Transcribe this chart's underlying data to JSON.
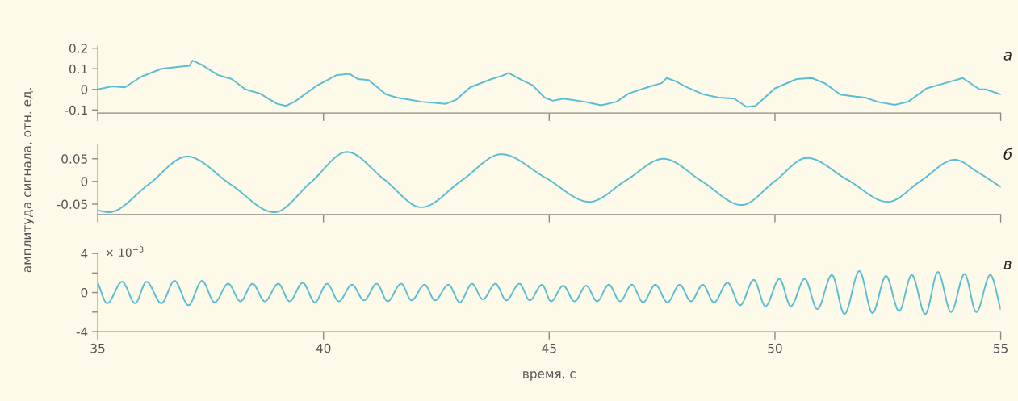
{
  "chart_data": [
    {
      "type": "line",
      "title": "а",
      "ylim": [
        -0.115,
        0.21
      ],
      "yticks": [
        0.2,
        0.1,
        0,
        {
          "value": -0.1,
          "label": "-0.1"
        }
      ],
      "xlim": [
        35,
        55
      ],
      "xticks": [
        35,
        40,
        45,
        50,
        55
      ],
      "tick_labels": "y",
      "grid": false,
      "series": [
        {
          "color": "#5bbcd3",
          "x": [
            35.0,
            35.32,
            35.6,
            35.95,
            36.41,
            36.8,
            37.03,
            37.1,
            37.3,
            37.66,
            37.97,
            38.27,
            38.59,
            38.97,
            39.17,
            39.36,
            39.83,
            40.3,
            40.58,
            40.76,
            41.0,
            41.39,
            41.63,
            42.17,
            42.71,
            42.94,
            43.25,
            43.72,
            43.95,
            44.1,
            44.4,
            44.63,
            44.9,
            45.08,
            45.31,
            45.79,
            46.15,
            46.49,
            46.76,
            47.24,
            47.49,
            47.6,
            47.8,
            48.0,
            48.42,
            48.76,
            49.1,
            49.37,
            49.57,
            50.0,
            50.48,
            50.82,
            51.1,
            51.45,
            51.79,
            52.0,
            52.27,
            52.65,
            52.95,
            53.36,
            53.84,
            54.16,
            54.53,
            54.67,
            55.0
          ],
          "values": [
            0.0,
            0.015,
            0.01,
            0.06,
            0.1,
            0.11,
            0.115,
            0.14,
            0.12,
            0.07,
            0.05,
            0.0,
            -0.02,
            -0.07,
            -0.08,
            -0.06,
            0.015,
            0.07,
            0.075,
            0.05,
            0.045,
            -0.025,
            -0.04,
            -0.06,
            -0.07,
            -0.05,
            0.01,
            0.05,
            0.065,
            0.08,
            0.045,
            0.02,
            -0.04,
            -0.055,
            -0.045,
            -0.06,
            -0.077,
            -0.06,
            -0.02,
            0.015,
            0.03,
            0.055,
            0.04,
            0.015,
            -0.025,
            -0.04,
            -0.045,
            -0.085,
            -0.08,
            0.005,
            0.05,
            0.055,
            0.03,
            -0.025,
            -0.035,
            -0.04,
            -0.06,
            -0.075,
            -0.06,
            0.005,
            0.035,
            0.055,
            0.0,
            0.0,
            -0.025
          ]
        }
      ]
    },
    {
      "type": "line",
      "title": "б",
      "ylabel": "амплитуда сигнала, отн. ед.",
      "ylim": [
        -0.073,
        0.08
      ],
      "yticks": [
        0.05,
        0,
        {
          "value": -0.05,
          "label": "-0.05"
        }
      ],
      "xlim": [
        35,
        55
      ],
      "xticks": [
        35,
        40,
        45,
        50,
        55
      ],
      "tick_labels": "y",
      "grid": false,
      "series": [
        {
          "color": "#5bbcd3",
          "x": [
            35.0,
            35.25,
            36.12,
            36.98,
            37.95,
            38.91,
            39.72,
            40.52,
            41.35,
            42.17,
            43.06,
            43.94,
            44.92,
            45.89,
            46.71,
            47.53,
            48.4,
            49.26,
            49.99,
            50.71,
            51.6,
            52.5,
            53.24,
            53.98,
            54.5,
            55.0
          ],
          "values": [
            -0.064,
            -0.068,
            -0.007,
            0.055,
            -0.007,
            -0.068,
            -0.002,
            0.065,
            0.004,
            -0.057,
            0.002,
            0.06,
            0.008,
            -0.045,
            0.003,
            0.05,
            -0.001,
            -0.052,
            0.0,
            0.052,
            0.004,
            -0.045,
            0.002,
            0.048,
            0.02,
            -0.012
          ]
        }
      ]
    },
    {
      "type": "line",
      "title": "в",
      "xlabel": "время, с",
      "annotations": [
        "× 10$^{−3}$"
      ],
      "ylim": [
        -4,
        4
      ],
      "yticks": [
        4,
        {
          "value": 2,
          "label": null
        },
        0,
        {
          "value": -2,
          "label": null
        },
        {
          "value": -4,
          "label": "-4"
        }
      ],
      "xlim": [
        35,
        55
      ],
      "xticks": [
        35,
        40,
        45,
        50,
        55
      ],
      "grid": false,
      "series": [
        {
          "color": "#5bbcd3",
          "x": [
            35.0,
            35.21,
            35.54,
            35.83,
            36.08,
            36.41,
            36.7,
            37.01,
            37.31,
            37.59,
            37.89,
            38.16,
            38.43,
            38.7,
            39.0,
            39.25,
            39.54,
            39.81,
            40.08,
            40.34,
            40.63,
            40.9,
            41.18,
            41.42,
            41.72,
            41.95,
            42.24,
            42.47,
            42.77,
            43.02,
            43.29,
            43.53,
            43.81,
            44.05,
            44.34,
            44.57,
            44.84,
            45.04,
            45.31,
            45.56,
            45.82,
            46.06,
            46.32,
            46.57,
            46.83,
            47.08,
            47.35,
            47.62,
            47.89,
            48.14,
            48.4,
            48.65,
            48.95,
            49.23,
            49.53,
            49.79,
            50.1,
            50.35,
            50.66,
            50.94,
            51.26,
            51.54,
            51.87,
            52.16,
            52.46,
            52.75,
            53.03,
            53.33,
            53.61,
            53.9,
            54.2,
            54.46,
            54.77,
            55.0
          ],
          "values": [
            1.0,
            -1.1,
            1.1,
            -1.1,
            1.1,
            -1.1,
            1.2,
            -1.3,
            1.2,
            -1.0,
            0.9,
            -0.9,
            0.9,
            -0.9,
            0.9,
            -0.9,
            1.0,
            -1.0,
            0.9,
            -0.9,
            0.8,
            -0.8,
            0.9,
            -0.9,
            0.9,
            -0.8,
            0.8,
            -0.8,
            0.8,
            -1.0,
            0.9,
            -0.7,
            0.9,
            -0.8,
            0.9,
            -0.8,
            0.8,
            -0.9,
            0.7,
            -0.9,
            0.7,
            -0.9,
            0.8,
            -0.9,
            0.8,
            -1.0,
            0.8,
            -1.0,
            0.8,
            -0.9,
            0.8,
            -1.0,
            1.0,
            -1.3,
            1.3,
            -1.4,
            1.4,
            -1.4,
            1.4,
            -1.7,
            1.8,
            -2.2,
            2.2,
            -2.1,
            1.7,
            -1.9,
            1.8,
            -2.2,
            2.1,
            -2.0,
            1.9,
            -2.0,
            1.8,
            -1.7
          ]
        }
      ]
    }
  ]
}
